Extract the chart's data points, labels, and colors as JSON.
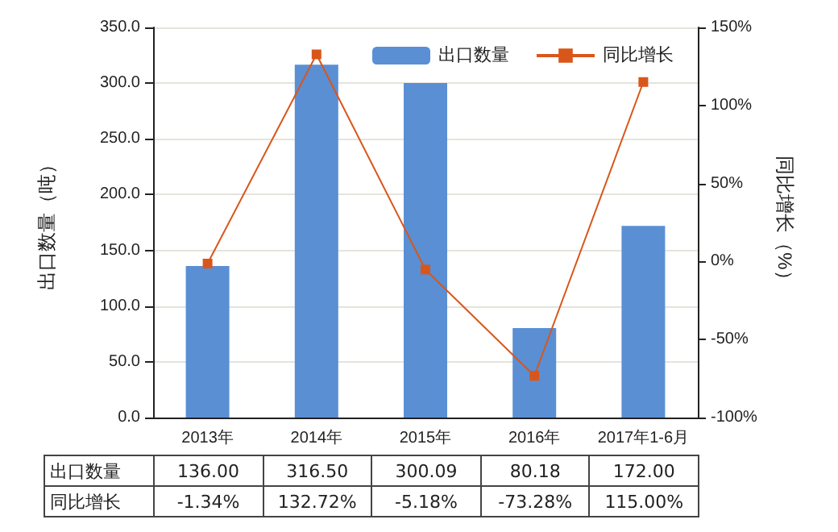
{
  "chart_data": {
    "type": "bar",
    "categories": [
      "2013年",
      "2014年",
      "2015年",
      "2016年",
      "2017年1-6月"
    ],
    "ylabel": "出口数量（吨）",
    "y2label": "同比增长（%）",
    "series": [
      {
        "name": "出口数量",
        "color": "#5a8fd4",
        "values": [
          136.0,
          316.5,
          300.09,
          80.18,
          172.0
        ],
        "value_labels": [
          "136.00",
          "316.50",
          "300.09",
          "80.18",
          "172.00"
        ]
      },
      {
        "name": "同比增长",
        "type": "line",
        "axis": "y2",
        "color": "#d9561a",
        "values": [
          -1.34,
          132.72,
          -5.18,
          -73.28,
          115.0
        ],
        "value_labels": [
          "-1.34%",
          "132.72%",
          "-5.18%",
          "-73.28%",
          "115.00%"
        ]
      }
    ],
    "ylim": [
      0,
      350
    ],
    "yticks": [
      {
        "value": 0,
        "label": "0.0"
      },
      {
        "value": 50,
        "label": "50.0"
      },
      {
        "value": 100,
        "label": "100.0"
      },
      {
        "value": 150,
        "label": "150.0"
      },
      {
        "value": 200,
        "label": "200.0"
      },
      {
        "value": 250,
        "label": "250.0"
      },
      {
        "value": 300,
        "label": "300.0"
      },
      {
        "value": 350,
        "label": "350.0"
      }
    ],
    "y2lim": [
      -100,
      150
    ],
    "y2ticks": [
      {
        "value": -100,
        "label": "-100%"
      },
      {
        "value": -50,
        "label": "-50%"
      },
      {
        "value": 0,
        "label": "0%"
      },
      {
        "value": 50,
        "label": "50%"
      },
      {
        "value": 100,
        "label": "100%"
      },
      {
        "value": 150,
        "label": "150%"
      }
    ],
    "grid": "y",
    "legend": "top right",
    "marker": "square",
    "line_style": "solid"
  }
}
